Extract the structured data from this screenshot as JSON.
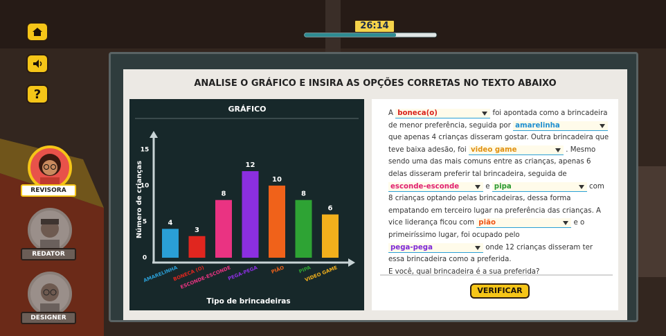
{
  "timer": "26:14",
  "sidebar": {
    "help_icon": "?",
    "roles": [
      "REVISORA",
      "REDATOR",
      "DESIGNER"
    ]
  },
  "panel": {
    "title": "ANALISE O GRÁFICO E INSIRA AS OPÇÕES CORRETAS NO TEXTO ABAIXO"
  },
  "chart_data": {
    "type": "bar",
    "title": "GRÁFICO",
    "x_label": "Tipo de brincadeiras",
    "y_label": "Número de crianças",
    "categories": [
      "AMARELINHA",
      "BONECA (O)",
      "ESCONDE-ESCONDE",
      "PEGA-PEGA",
      "PIÃO",
      "PIPA",
      "VIDEO GAME"
    ],
    "values": [
      4,
      3,
      8,
      12,
      10,
      8,
      6
    ],
    "colors": [
      "#2a9fd6",
      "#e0261f",
      "#ea3382",
      "#8b2fe0",
      "#f0621a",
      "#2ea334",
      "#f2b01c"
    ],
    "ylim": [
      0,
      17
    ],
    "yticks": [
      0,
      5,
      10,
      15
    ]
  },
  "passage": {
    "parts": [
      "A",
      {
        "option": "boneca(o)",
        "color": "#d8231c"
      },
      "foi apontada como a brincadeira de menor preferência, seguida por",
      {
        "option": "amarelinha",
        "color": "#1f8fd0"
      },
      "que apenas 4 crianças disseram gostar. Outra brincadeira que teve baixa adesão, foi",
      {
        "option": "video game",
        "color": "#e0900f"
      },
      ". Mesmo sendo uma das mais comuns entre as crianças, apenas 6 delas disseram preferir tal brincadeira, seguida de",
      {
        "option": "esconde-esconde",
        "color": "#e0206f"
      },
      "e",
      {
        "option": "pipa",
        "color": "#2a9a2f"
      },
      "com 8 crianças optando pelas brincadeiras, dessa forma empatando em terceiro lugar na preferência das crianças. A vice liderança ficou com",
      {
        "option": "pião",
        "color": "#ee5516"
      },
      "e o primeiríssimo lugar, foi ocupado pelo",
      {
        "option": "pega-pega",
        "color": "#7d28d6"
      },
      "onde 12 crianças disseram ter essa brincadeira como a preferida."
    ],
    "question": "E você, qual brincadeira é a sua preferida?"
  },
  "button": "VERIFICAR"
}
